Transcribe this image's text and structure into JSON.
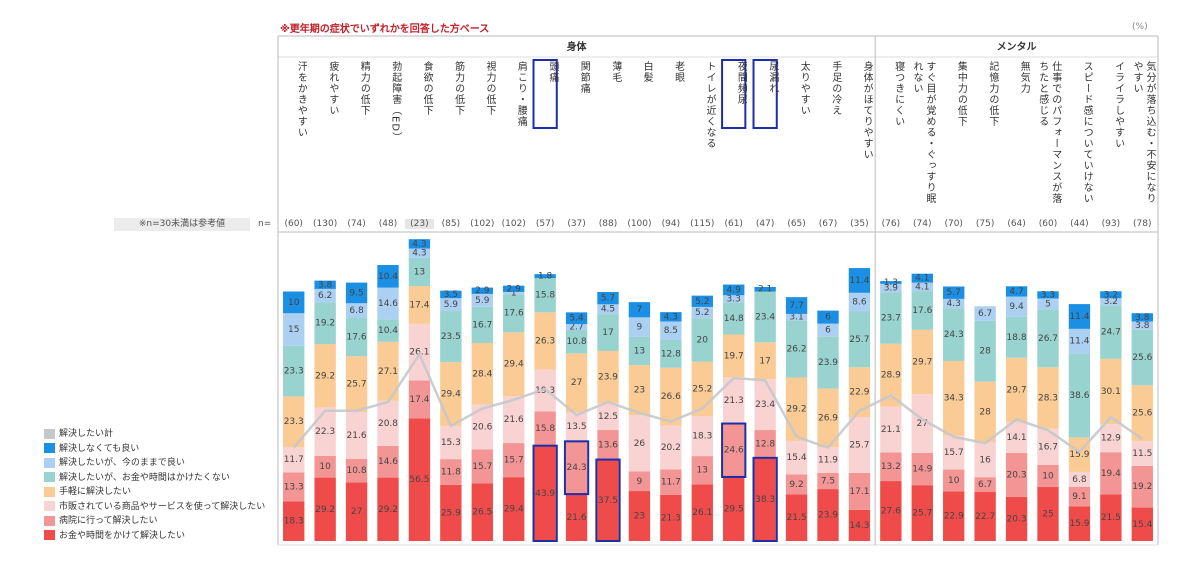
{
  "chart_data": {
    "type": "stacked_bar",
    "annotation": "※更年期の症状でいずれかを回答した方ベース",
    "unit_label": "(%)",
    "n_note": "※n=30未満は参考値",
    "n_prefix": "n=",
    "groups": [
      {
        "name": "身体",
        "span": 19
      },
      {
        "name": "メンタル",
        "span": 9
      }
    ],
    "categories": [
      "汗をかきやすい",
      "疲れやすい",
      "精力の低下",
      "勃起障害（ED）",
      "食欲の低下",
      "筋力の低下",
      "視力の低下",
      "肩こり・腰痛",
      "頭痛",
      "関節痛",
      "薄毛",
      "白髪",
      "老眼",
      "トイレが近くなる",
      "夜間頻尿",
      "尿漏れ",
      "太りやすい",
      "手足の冷え",
      "身体がほてりやすい",
      "寝つきにくい",
      "すぐ目が覚める・ぐっすり眠れない",
      "集中力の低下",
      "記憶力の低下",
      "無気力",
      "仕事でのパフォーマンスが落ちたと感じる",
      "スピード感についていけない",
      "イライラしやすい",
      "気分が落ち込む・不安になりやすい"
    ],
    "n": [
      60,
      130,
      74,
      48,
      23,
      85,
      102,
      102,
      57,
      37,
      88,
      100,
      94,
      115,
      61,
      47,
      65,
      67,
      35,
      76,
      74,
      70,
      75,
      64,
      60,
      44,
      93,
      78
    ],
    "n_labels": [
      "(60)",
      "(130)",
      "(74)",
      "(48)",
      "(23)",
      "(85)",
      "(102)",
      "(102)",
      "(57)",
      "(37)",
      "(88)",
      "(100)",
      "(94)",
      "(115)",
      "(61)",
      "(47)",
      "(65)",
      "(67)",
      "(35)",
      "(76)",
      "(74)",
      "(70)",
      "(75)",
      "(64)",
      "(60)",
      "(44)",
      "(93)",
      "(78)"
    ],
    "ylim": [
      0,
      140
    ],
    "series": [
      {
        "name": "お金や時間をかけて解決したい",
        "color": "#f04b4b",
        "values": [
          18.3,
          29.2,
          27.0,
          29.2,
          56.5,
          25.9,
          26.5,
          29.4,
          43.9,
          21.6,
          37.5,
          23.0,
          21.3,
          26.1,
          29.5,
          38.3,
          21.5,
          23.9,
          14.3,
          27.6,
          25.7,
          22.9,
          22.7,
          20.3,
          25.0,
          15.9,
          21.5,
          15.4
        ]
      },
      {
        "name": "病院に行って解決したい",
        "color": "#f49595",
        "values": [
          13.3,
          10.0,
          10.8,
          14.6,
          17.4,
          11.8,
          15.7,
          15.7,
          15.8,
          24.3,
          13.6,
          9.0,
          11.7,
          13.0,
          24.6,
          12.8,
          9.2,
          7.5,
          17.1,
          13.2,
          14.9,
          10.0,
          6.7,
          20.3,
          10.0,
          9.1,
          19.4,
          19.2
        ]
      },
      {
        "name": "市販されている商品やサービスを使って解決したい",
        "color": "#f9d2d2",
        "values": [
          11.7,
          22.3,
          21.6,
          20.8,
          26.1,
          15.3,
          20.6,
          21.6,
          19.3,
          13.5,
          12.5,
          26.0,
          20.2,
          18.3,
          21.3,
          23.4,
          15.4,
          11.9,
          25.7,
          21.1,
          27.0,
          15.7,
          16.0,
          14.1,
          16.7,
          6.8,
          12.9,
          11.5
        ]
      },
      {
        "name": "手軽に解決したい",
        "color": "#facb94",
        "values": [
          23.3,
          29.2,
          25.7,
          27.1,
          17.4,
          29.4,
          28.4,
          29.4,
          26.3,
          27.0,
          23.9,
          23.0,
          26.6,
          25.2,
          19.7,
          17.0,
          29.2,
          26.9,
          22.9,
          28.9,
          29.7,
          34.3,
          28.0,
          29.7,
          28.3,
          15.9,
          30.1,
          25.6
        ]
      },
      {
        "name": "解決したいが、お金や時間はかけたくない",
        "color": "#98d3cf",
        "values": [
          23.3,
          19.2,
          17.6,
          10.4,
          13.0,
          23.5,
          16.7,
          17.6,
          15.8,
          10.8,
          17.0,
          13.0,
          12.8,
          20.0,
          14.8,
          23.4,
          26.2,
          23.9,
          25.7,
          23.7,
          17.6,
          24.3,
          28.0,
          18.8,
          26.7,
          38.6,
          24.7,
          25.6
        ]
      },
      {
        "name": "解決したいが、今のままで良い",
        "color": "#abd0f2",
        "values": [
          15.0,
          6.2,
          6.8,
          14.6,
          4.3,
          5.9,
          5.9,
          1.0,
          null,
          2.7,
          4.5,
          9.0,
          8.5,
          5.2,
          3.3,
          null,
          3.1,
          6.0,
          8.6,
          3.9,
          4.1,
          4.3,
          6.7,
          9.4,
          5.0,
          11.4,
          3.2,
          3.8
        ]
      },
      {
        "name": "解決しなくても良い",
        "color": "#1a8fe3",
        "values": [
          10.0,
          3.8,
          9.5,
          10.4,
          4.3,
          3.5,
          2.9,
          2.9,
          1.8,
          5.4,
          5.7,
          7.0,
          4.3,
          5.2,
          4.9,
          2.1,
          7.7,
          6.0,
          11.4,
          1.3,
          4.1,
          5.7,
          null,
          4.7,
          3.3,
          11.4,
          3.2,
          3.8
        ]
      }
    ],
    "line_series": {
      "name": "解決したい計",
      "color": "#c4c8cc",
      "values": [
        43,
        60,
        60,
        64,
        86,
        53,
        61,
        65,
        70,
        58,
        64,
        59,
        55,
        61,
        75,
        74,
        48,
        43,
        60,
        67,
        56,
        48,
        45,
        56,
        51,
        41,
        57,
        47
      ]
    }
  }
}
